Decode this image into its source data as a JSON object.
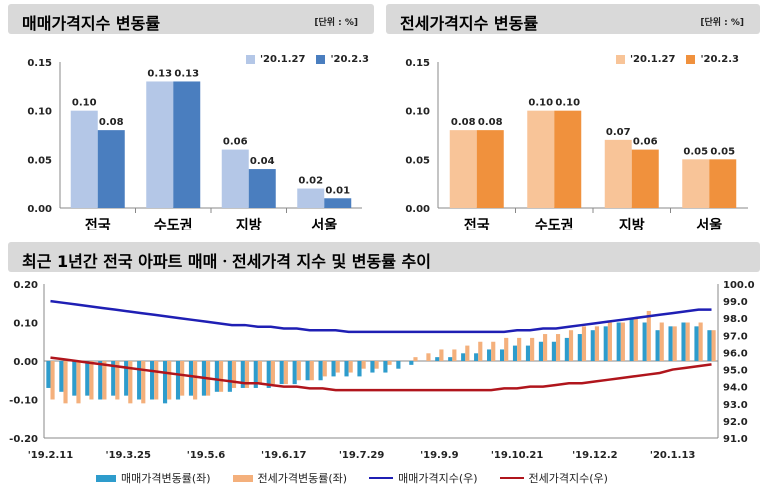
{
  "panel1": {
    "title": "매매가격지수 변동률",
    "unit": "[단위 : %]"
  },
  "panel2": {
    "title": "전세가격지수 변동률",
    "unit": "[단위 : %]"
  },
  "panel3": {
    "title": "최근 1년간 전국 아파트 매매ㆍ전세가격 지수 및 변동률 추이"
  },
  "legend_bottom": {
    "sale_rate": "매매가격변동률(좌)",
    "jeonse_rate": "전세가격변동률(좌)",
    "sale_index": "매매가격지수(우)",
    "jeonse_index": "전세가격지수(우)"
  },
  "colors": {
    "sale_prev": "#b4c7e7",
    "sale_curr": "#4a7ebf",
    "jeonse_prev": "#f8c498",
    "jeonse_curr": "#f0913d",
    "sale_rate_bar": "#2e9ccc",
    "jeonse_rate_bar": "#f4b07c",
    "sale_index_line": "#1f1fb4",
    "jeonse_index_line": "#b0151c"
  },
  "chart_data": [
    {
      "type": "bar",
      "title": "매매가격지수 변동률",
      "categories": [
        "전국",
        "수도권",
        "지방",
        "서울"
      ],
      "series": [
        {
          "name": "'20.1.27",
          "values": [
            0.1,
            0.13,
            0.06,
            0.02
          ]
        },
        {
          "name": "'20.2.3",
          "values": [
            0.08,
            0.13,
            0.04,
            0.01
          ]
        }
      ],
      "ylim": [
        0,
        0.15
      ],
      "yticks": [
        "0.00",
        "0.05",
        "0.10",
        "0.15"
      ],
      "legend": "top-right"
    },
    {
      "type": "bar",
      "title": "전세가격지수 변동률",
      "categories": [
        "전국",
        "수도권",
        "지방",
        "서울"
      ],
      "series": [
        {
          "name": "'20.1.27",
          "values": [
            0.08,
            0.1,
            0.07,
            0.05
          ]
        },
        {
          "name": "'20.2.3",
          "values": [
            0.08,
            0.1,
            0.06,
            0.05
          ]
        }
      ],
      "ylim": [
        0,
        0.15
      ],
      "yticks": [
        "0.00",
        "0.05",
        "0.10",
        "0.15"
      ],
      "legend": "top-right"
    },
    {
      "type": "bar",
      "title": "최근 1년간 전국 아파트 매매ㆍ전세가격 지수 및 변동률 추이",
      "x_ticks": [
        "'19.2.11",
        "'19.3.25",
        "'19.5.6",
        "'19.6.17",
        "'19.7.29",
        "'19.9.9",
        "'19.10.21",
        "'19.12.2",
        "'20.1.13"
      ],
      "x_tick_index": [
        0,
        6,
        12,
        18,
        24,
        30,
        36,
        42,
        48
      ],
      "ylim_left": [
        -0.2,
        0.2
      ],
      "yticks_left": [
        "-0.20",
        "-0.10",
        "0.00",
        "0.10",
        "0.20"
      ],
      "ylim_right": [
        91.0,
        100.0
      ],
      "yticks_right": [
        "91.0",
        "92.0",
        "93.0",
        "94.0",
        "95.0",
        "96.0",
        "97.0",
        "98.0",
        "99.0",
        "100.0"
      ],
      "series": [
        {
          "name": "매매가격변동률(좌)",
          "axis": "left",
          "kind": "bar",
          "values": [
            -0.07,
            -0.08,
            -0.09,
            -0.09,
            -0.1,
            -0.09,
            -0.09,
            -0.1,
            -0.1,
            -0.11,
            -0.1,
            -0.09,
            -0.09,
            -0.08,
            -0.08,
            -0.07,
            -0.07,
            -0.07,
            -0.06,
            -0.06,
            -0.05,
            -0.05,
            -0.04,
            -0.04,
            -0.04,
            -0.03,
            -0.03,
            -0.02,
            -0.01,
            0.0,
            0.01,
            0.01,
            0.02,
            0.02,
            0.03,
            0.03,
            0.04,
            0.04,
            0.05,
            0.05,
            0.06,
            0.07,
            0.08,
            0.09,
            0.1,
            0.11,
            0.1,
            0.08,
            0.09,
            0.1,
            0.09,
            0.08
          ]
        },
        {
          "name": "전세가격변동률(좌)",
          "axis": "left",
          "kind": "bar",
          "values": [
            -0.1,
            -0.11,
            -0.11,
            -0.1,
            -0.1,
            -0.1,
            -0.11,
            -0.11,
            -0.1,
            -0.1,
            -0.09,
            -0.1,
            -0.09,
            -0.08,
            -0.07,
            -0.07,
            -0.06,
            -0.06,
            -0.06,
            -0.05,
            -0.05,
            -0.04,
            -0.03,
            -0.03,
            -0.02,
            -0.02,
            -0.01,
            0.0,
            0.01,
            0.02,
            0.03,
            0.03,
            0.04,
            0.05,
            0.05,
            0.06,
            0.06,
            0.06,
            0.07,
            0.07,
            0.08,
            0.09,
            0.09,
            0.1,
            0.1,
            0.11,
            0.13,
            0.1,
            0.09,
            0.1,
            0.1,
            0.08
          ]
        },
        {
          "name": "매매가격지수(우)",
          "axis": "right",
          "kind": "line",
          "values": [
            99.0,
            98.9,
            98.8,
            98.7,
            98.6,
            98.5,
            98.4,
            98.3,
            98.2,
            98.1,
            98.0,
            97.9,
            97.8,
            97.7,
            97.6,
            97.6,
            97.5,
            97.5,
            97.4,
            97.4,
            97.3,
            97.3,
            97.3,
            97.2,
            97.2,
            97.2,
            97.2,
            97.2,
            97.2,
            97.2,
            97.2,
            97.2,
            97.2,
            97.2,
            97.2,
            97.2,
            97.3,
            97.3,
            97.4,
            97.4,
            97.5,
            97.6,
            97.7,
            97.8,
            97.9,
            98.0,
            98.1,
            98.2,
            98.3,
            98.4,
            98.5,
            98.5
          ]
        },
        {
          "name": "전세가격지수(우)",
          "axis": "right",
          "kind": "line",
          "values": [
            95.7,
            95.6,
            95.5,
            95.4,
            95.3,
            95.2,
            95.1,
            95.0,
            94.9,
            94.8,
            94.7,
            94.6,
            94.5,
            94.4,
            94.3,
            94.2,
            94.2,
            94.1,
            94.0,
            94.0,
            93.9,
            93.9,
            93.8,
            93.8,
            93.8,
            93.8,
            93.8,
            93.8,
            93.8,
            93.8,
            93.8,
            93.8,
            93.8,
            93.8,
            93.8,
            93.9,
            93.9,
            94.0,
            94.0,
            94.1,
            94.2,
            94.2,
            94.3,
            94.4,
            94.5,
            94.6,
            94.7,
            94.8,
            95.0,
            95.1,
            95.2,
            95.3
          ]
        }
      ],
      "legend": "bottom"
    }
  ]
}
